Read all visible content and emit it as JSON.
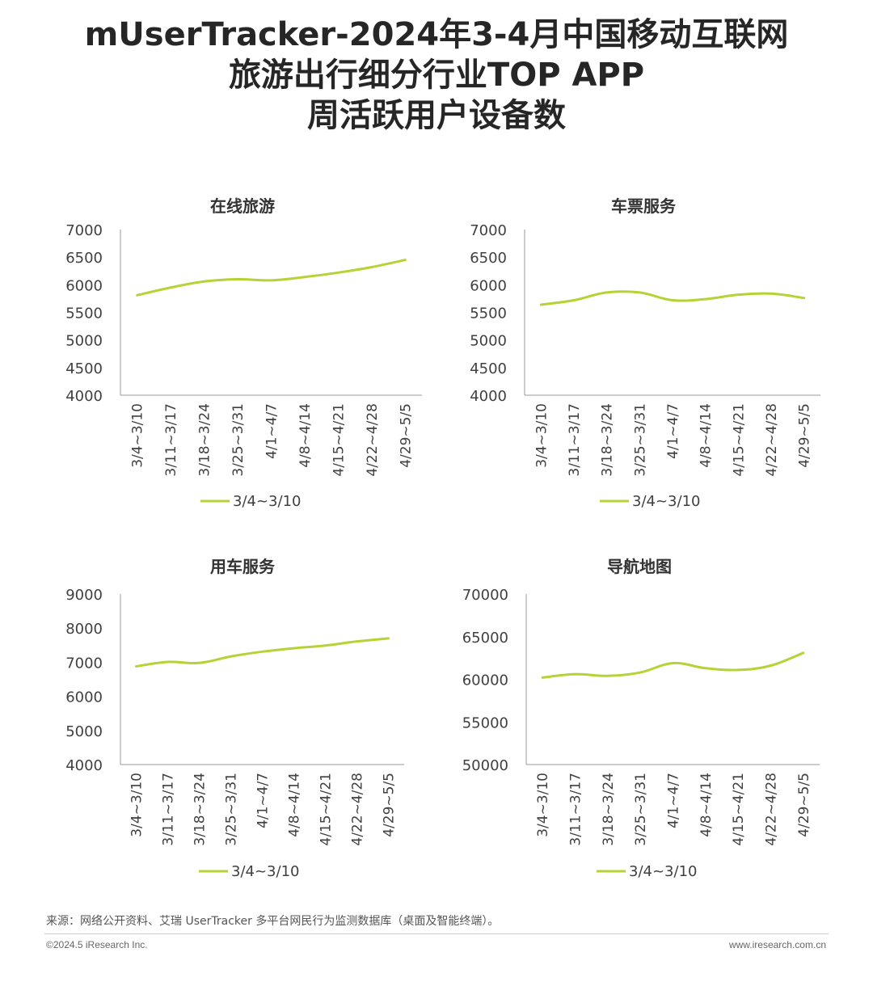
{
  "header": {
    "title_lines": [
      "mUserTracker-2024年3-4月中国移动互联网",
      "旅游出行细分行业TOP APP",
      "周活跃用户设备数"
    ]
  },
  "colors": {
    "line": "#b5d334",
    "axis": "#999999",
    "text": "#404040"
  },
  "chart_data": [
    {
      "type": "line",
      "title": "在线旅游",
      "categories": [
        "3/4~3/10",
        "3/11~3/17",
        "3/18~3/24",
        "3/25~3/31",
        "4/1~4/7",
        "4/8~4/14",
        "4/15~4/21",
        "4/22~4/28",
        "4/29~5/5"
      ],
      "series": [
        {
          "name": "3/4~3/10",
          "values": [
            5810,
            5950,
            6060,
            6100,
            6080,
            6140,
            6220,
            6320,
            6450
          ]
        }
      ],
      "yticks": [
        4000,
        4500,
        5000,
        5500,
        6000,
        6500,
        7000
      ],
      "ylim": [
        4000,
        7000
      ],
      "legend": "bottom",
      "grid": false
    },
    {
      "type": "line",
      "title": "车票服务",
      "categories": [
        "3/4~3/10",
        "3/11~3/17",
        "3/18~3/24",
        "3/25~3/31",
        "4/1~4/7",
        "4/8~4/14",
        "4/15~4/21",
        "4/22~4/28",
        "4/29~5/5"
      ],
      "series": [
        {
          "name": "3/4~3/10",
          "values": [
            5640,
            5720,
            5860,
            5860,
            5720,
            5740,
            5820,
            5840,
            5760
          ]
        }
      ],
      "yticks": [
        4000,
        4500,
        5000,
        5500,
        6000,
        6500,
        7000
      ],
      "ylim": [
        4000,
        7000
      ],
      "legend": "bottom",
      "grid": false
    },
    {
      "type": "line",
      "title": "用车服务",
      "categories": [
        "3/4~3/10",
        "3/11~3/17",
        "3/18~3/24",
        "3/25~3/31",
        "4/1~4/7",
        "4/8~4/14",
        "4/15~4/21",
        "4/22~4/28",
        "4/29~5/5"
      ],
      "series": [
        {
          "name": "3/4~3/10",
          "values": [
            6880,
            7010,
            6980,
            7170,
            7310,
            7410,
            7490,
            7610,
            7700
          ]
        }
      ],
      "yticks": [
        4000,
        5000,
        6000,
        7000,
        8000,
        9000
      ],
      "ylim": [
        4000,
        9000
      ],
      "legend": "bottom",
      "grid": false
    },
    {
      "type": "line",
      "title": "导航地图",
      "categories": [
        "3/4~3/10",
        "3/11~3/17",
        "3/18~3/24",
        "3/25~3/31",
        "4/1~4/7",
        "4/8~4/14",
        "4/15~4/21",
        "4/22~4/28",
        "4/29~5/5"
      ],
      "series": [
        {
          "name": "3/4~3/10",
          "values": [
            60200,
            60600,
            60400,
            60800,
            61900,
            61300,
            61100,
            61600,
            63100
          ]
        }
      ],
      "yticks": [
        50000,
        55000,
        60000,
        65000,
        70000
      ],
      "ylim": [
        50000,
        70000
      ],
      "legend": "bottom",
      "grid": false
    }
  ],
  "footer": {
    "source": "来源：网络公开资料、艾瑞 UserTracker 多平台网民行为监测数据库（桌面及智能终端）。",
    "copyright": "©2024.5 iResearch Inc.",
    "website": "www.iresearch.com.cn"
  }
}
